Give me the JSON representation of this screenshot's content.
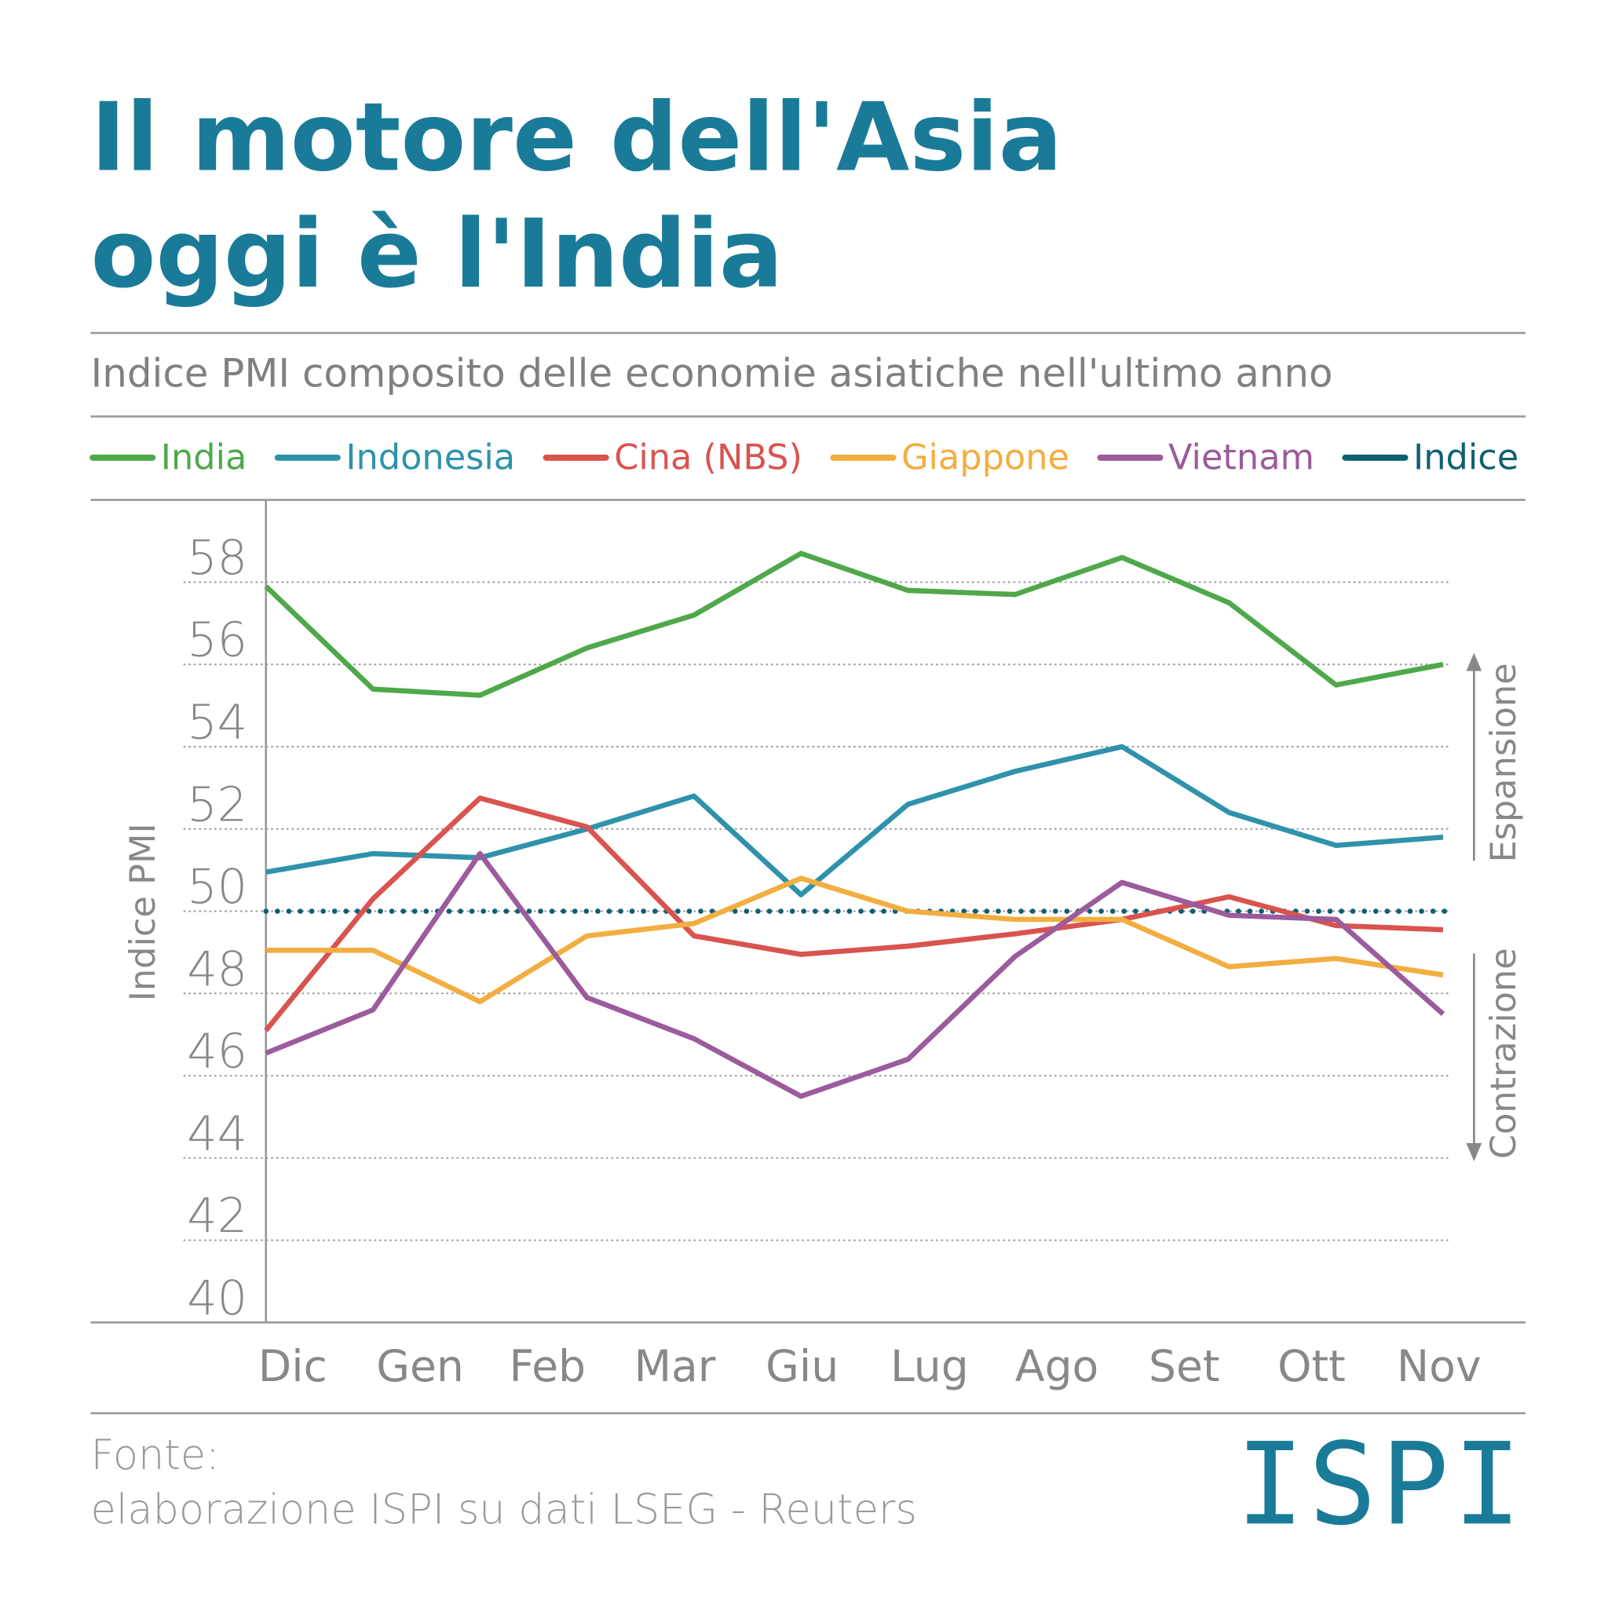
{
  "chart_data": {
    "type": "line",
    "title": [
      "Il motore dell'Asia",
      "oggi è l'India"
    ],
    "subtitle": "Indice PMI composito delle economie asiatiche nell'ultimo anno",
    "y_label": "Indice PMI",
    "categories": [
      "Dic",
      "Gen",
      "Feb",
      "Mar",
      null,
      null,
      "Giu",
      "Lug",
      "Ago",
      "Set",
      "Ott",
      "Nov"
    ],
    "series": [
      {
        "name": "India",
        "color": "#4fa84a",
        "values": [
          57.9,
          55.4,
          55.25,
          56.4,
          57.2,
          58.7,
          57.8,
          57.7,
          58.6,
          57.5,
          55.5,
          56.0
        ]
      },
      {
        "name": "Indonesia",
        "color": "#2f92ab",
        "values": [
          50.95,
          51.4,
          51.3,
          52.0,
          52.8,
          50.4,
          52.6,
          53.4,
          54.0,
          52.4,
          51.6,
          51.8
        ]
      },
      {
        "name": "Cina (NBS)",
        "color": "#d9534f",
        "values": [
          47.1,
          50.3,
          52.75,
          52.05,
          49.4,
          48.95,
          49.15,
          49.45,
          49.8,
          50.35,
          49.65,
          49.55
        ]
      },
      {
        "name": "Giappone",
        "color": "#f2ae40",
        "values": [
          49.05,
          49.05,
          47.8,
          49.4,
          49.7,
          50.8,
          50.0,
          49.8,
          49.8,
          48.65,
          48.85,
          48.45
        ]
      },
      {
        "name": "Vietnam",
        "color": "#9b5b9c",
        "values": [
          46.55,
          47.6,
          51.4,
          47.9,
          46.9,
          45.5,
          46.4,
          48.9,
          50.7,
          49.9,
          49.8,
          47.5
        ]
      }
    ],
    "reference": {
      "name": "Indice",
      "value": 50,
      "color": "#0f5f73"
    },
    "ylim": [
      40,
      60
    ],
    "yticks": [
      40,
      42,
      44,
      46,
      48,
      50,
      52,
      54,
      56,
      58
    ],
    "grid": true,
    "annotations": [
      "Espansione",
      "Contrazione"
    ],
    "source": [
      "Fonte:",
      "elaborazione ISPI su dati LSEG - Reuters"
    ],
    "logo": "ISPI"
  }
}
